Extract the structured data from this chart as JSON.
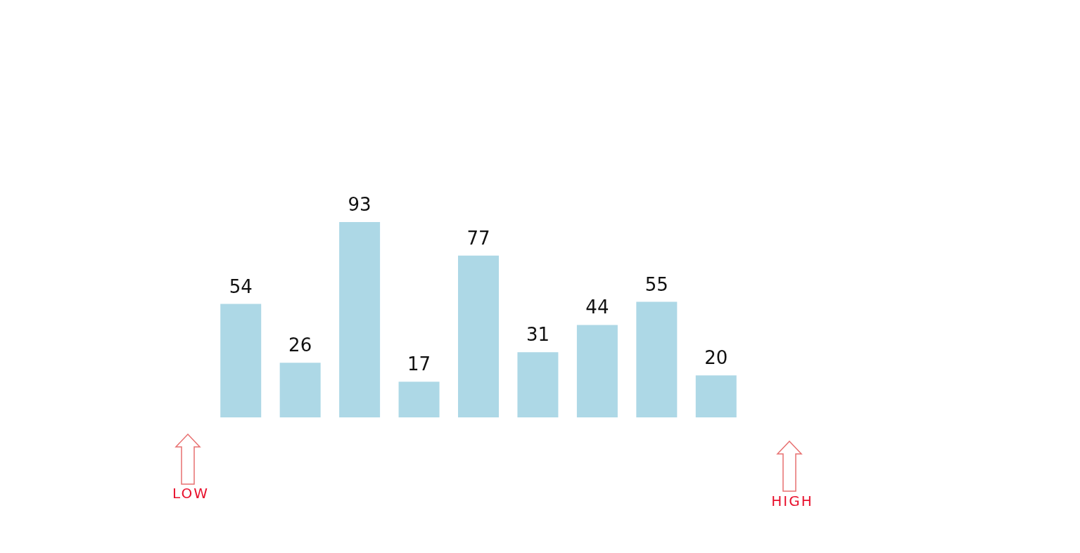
{
  "chart_data": {
    "type": "bar",
    "categories": [
      null,
      null,
      null,
      null,
      null,
      null,
      null,
      null,
      null
    ],
    "values": [
      54,
      26,
      93,
      17,
      77,
      31,
      44,
      55,
      20
    ],
    "color": "#add8e6",
    "data_labels": true,
    "annotations": [
      "LOW",
      "HIGH"
    ]
  }
}
